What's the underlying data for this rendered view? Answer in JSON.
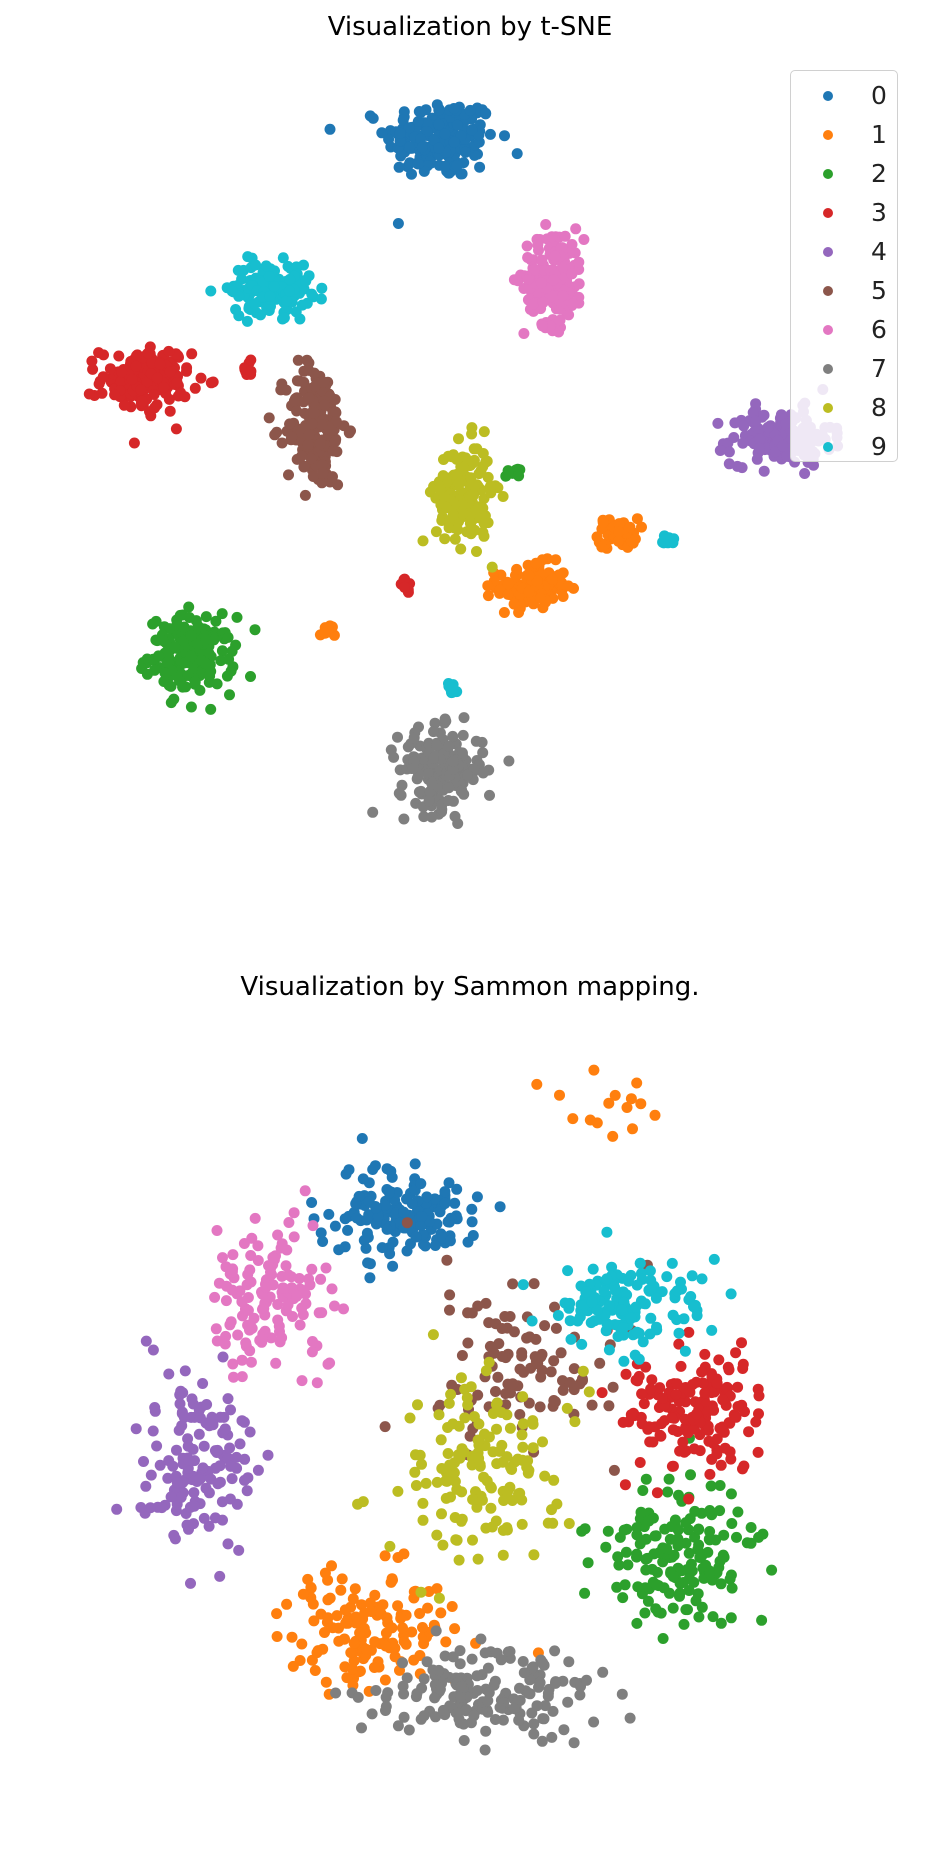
{
  "chart_data": [
    {
      "type": "scatter",
      "title": "Visualization by t-SNE",
      "axes_visible": false,
      "grid": false,
      "legend_position": "top-right",
      "legend": [
        "0",
        "1",
        "2",
        "3",
        "4",
        "5",
        "6",
        "7",
        "8",
        "9"
      ],
      "series": [
        {
          "name": "0",
          "color": "#1f77b4",
          "clusters": [
            {
              "cx": 0.0,
              "cy": 16.0,
              "sx": 2.2,
              "sy": 1.6,
              "n": 200
            }
          ]
        },
        {
          "name": "1",
          "color": "#ff7f0e",
          "clusters": [
            {
              "cx": 4.0,
              "cy": -3.5,
              "sx": 1.4,
              "sy": 0.9,
              "n": 120
            },
            {
              "cx": 7.8,
              "cy": -1.2,
              "sx": 0.8,
              "sy": 0.6,
              "n": 50
            },
            {
              "cx": -5.0,
              "cy": -5.5,
              "sx": 0.3,
              "sy": 0.3,
              "n": 12
            }
          ]
        },
        {
          "name": "2",
          "color": "#2ca02c",
          "clusters": [
            {
              "cx": -11.0,
              "cy": -6.5,
              "sx": 1.7,
              "sy": 1.5,
              "n": 180
            },
            {
              "cx": 3.2,
              "cy": 1.5,
              "sx": 0.3,
              "sy": 0.2,
              "n": 8
            }
          ]
        },
        {
          "name": "3",
          "color": "#d62728",
          "clusters": [
            {
              "cx": -13.0,
              "cy": 5.5,
              "sx": 1.8,
              "sy": 1.3,
              "n": 150
            },
            {
              "cx": -8.5,
              "cy": 6.0,
              "sx": 0.3,
              "sy": 0.3,
              "n": 8
            },
            {
              "cx": -1.5,
              "cy": -3.5,
              "sx": 0.35,
              "sy": 0.3,
              "n": 10
            }
          ]
        },
        {
          "name": "4",
          "color": "#9467bd",
          "clusters": [
            {
              "cx": 15.0,
              "cy": 3.0,
              "sx": 2.0,
              "sy": 1.1,
              "n": 160
            }
          ]
        },
        {
          "name": "5",
          "color": "#8c564b",
          "clusters": [
            {
              "cx": -5.5,
              "cy": 3.5,
              "sx": 1.2,
              "sy": 2.5,
              "n": 170
            }
          ]
        },
        {
          "name": "6",
          "color": "#e377c2",
          "clusters": [
            {
              "cx": 5.0,
              "cy": 10.0,
              "sx": 1.2,
              "sy": 1.9,
              "n": 170
            }
          ]
        },
        {
          "name": "7",
          "color": "#7f7f7f",
          "clusters": [
            {
              "cx": 0.0,
              "cy": -11.5,
              "sx": 1.7,
              "sy": 1.6,
              "n": 180
            }
          ]
        },
        {
          "name": "8",
          "color": "#bcbd22",
          "clusters": [
            {
              "cx": 1.0,
              "cy": 0.5,
              "sx": 1.1,
              "sy": 2.0,
              "n": 170
            }
          ]
        },
        {
          "name": "9",
          "color": "#17becf",
          "clusters": [
            {
              "cx": -7.5,
              "cy": 9.5,
              "sx": 1.6,
              "sy": 1.0,
              "n": 150
            },
            {
              "cx": 0.5,
              "cy": -8.0,
              "sx": 0.2,
              "sy": 0.3,
              "n": 10
            },
            {
              "cx": 10.0,
              "cy": -1.5,
              "sx": 0.3,
              "sy": 0.2,
              "n": 12
            }
          ]
        }
      ],
      "xlim": [
        -17,
        20
      ],
      "ylim": [
        -15,
        19
      ]
    },
    {
      "type": "scatter",
      "title": "Visualization by Sammon mapping.",
      "axes_visible": false,
      "grid": false,
      "series": [
        {
          "name": "0",
          "color": "#1f77b4",
          "clusters": [
            {
              "cx": -0.4,
              "cy": 1.2,
              "sx": 0.38,
              "sy": 0.23,
              "n": 160
            }
          ]
        },
        {
          "name": "1",
          "color": "#ff7f0e",
          "clusters": [
            {
              "cx": -0.55,
              "cy": -1.1,
              "sx": 0.45,
              "sy": 0.3,
              "n": 150
            },
            {
              "cx": 0.7,
              "cy": 1.8,
              "sx": 0.35,
              "sy": 0.15,
              "n": 15
            }
          ]
        },
        {
          "name": "2",
          "color": "#2ca02c",
          "clusters": [
            {
              "cx": 1.2,
              "cy": -0.7,
              "sx": 0.38,
              "sy": 0.35,
              "n": 160
            }
          ]
        },
        {
          "name": "3",
          "color": "#d62728",
          "clusters": [
            {
              "cx": 1.25,
              "cy": 0.1,
              "sx": 0.35,
              "sy": 0.3,
              "n": 160
            }
          ]
        },
        {
          "name": "4",
          "color": "#9467bd",
          "clusters": [
            {
              "cx": -1.55,
              "cy": -0.15,
              "sx": 0.3,
              "sy": 0.45,
              "n": 140
            }
          ]
        },
        {
          "name": "5",
          "color": "#8c564b",
          "clusters": [
            {
              "cx": 0.3,
              "cy": 0.4,
              "sx": 0.55,
              "sy": 0.45,
              "n": 100
            }
          ]
        },
        {
          "name": "6",
          "color": "#e377c2",
          "clusters": [
            {
              "cx": -1.1,
              "cy": 0.75,
              "sx": 0.3,
              "sy": 0.35,
              "n": 140
            }
          ]
        },
        {
          "name": "7",
          "color": "#7f7f7f",
          "clusters": [
            {
              "cx": 0.1,
              "cy": -1.45,
              "sx": 0.6,
              "sy": 0.25,
              "n": 170
            }
          ]
        },
        {
          "name": "8",
          "color": "#bcbd22",
          "clusters": [
            {
              "cx": 0.05,
              "cy": -0.2,
              "sx": 0.45,
              "sy": 0.45,
              "n": 150
            }
          ]
        },
        {
          "name": "9",
          "color": "#17becf",
          "clusters": [
            {
              "cx": 0.9,
              "cy": 0.7,
              "sx": 0.4,
              "sy": 0.25,
              "n": 140
            }
          ]
        }
      ],
      "xlim": [
        -2.3,
        2.3
      ],
      "ylim": [
        -2.1,
        2.1
      ]
    }
  ]
}
